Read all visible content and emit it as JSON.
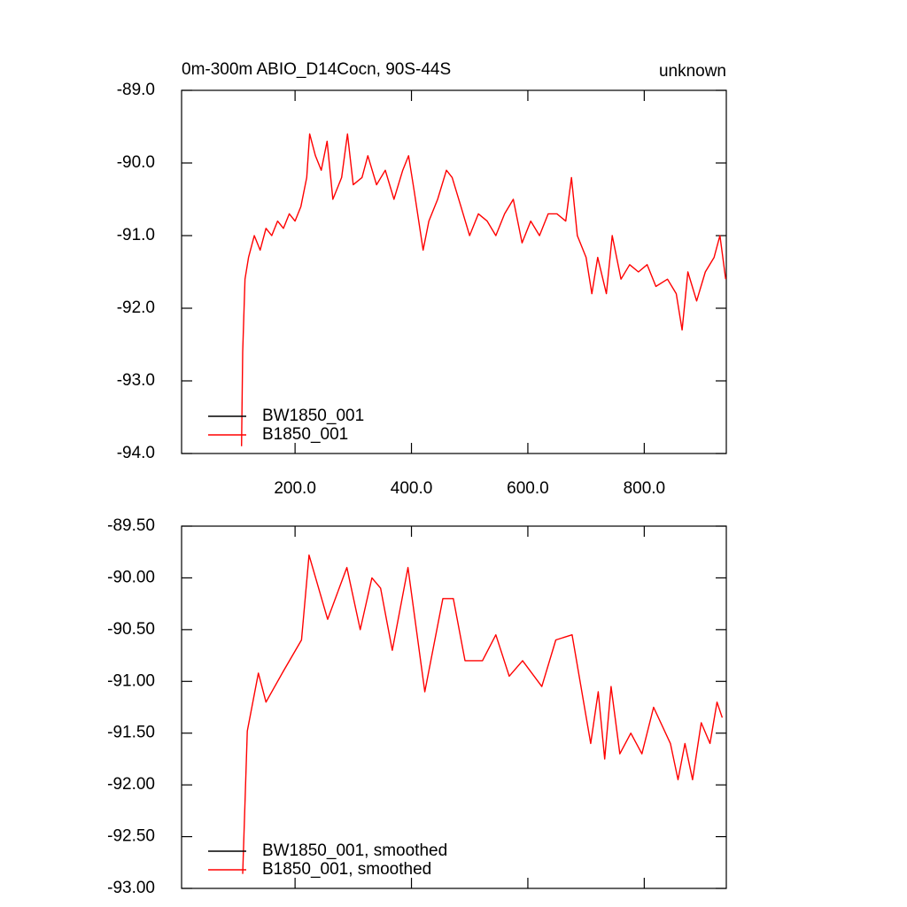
{
  "chart_data": [
    {
      "type": "line",
      "title": "0m-300m ABIO_D14Cocn, 90S-44S",
      "subtitle": "unknown",
      "x": [
        108,
        110,
        114,
        120,
        130,
        140,
        150,
        160,
        170,
        180,
        190,
        200,
        210,
        220,
        225,
        235,
        245,
        255,
        265,
        280,
        290,
        300,
        315,
        325,
        340,
        355,
        370,
        385,
        395,
        405,
        420,
        430,
        445,
        460,
        470,
        485,
        500,
        515,
        530,
        545,
        560,
        575,
        590,
        605,
        620,
        635,
        650,
        665,
        675,
        685,
        700,
        710,
        720,
        735,
        745,
        760,
        775,
        790,
        805,
        820,
        840,
        855,
        865,
        875,
        890,
        905,
        920,
        930,
        940
      ],
      "series": [
        {
          "name": "BW1850_001",
          "color": "#000000",
          "values": [
            null,
            null,
            null,
            null,
            null,
            null,
            null,
            null,
            null,
            null,
            null,
            null,
            null,
            null,
            null,
            null,
            null,
            null,
            null,
            null,
            null,
            null,
            null,
            null,
            null,
            null,
            null,
            null,
            null,
            null,
            null,
            null,
            null,
            null,
            null,
            null,
            null,
            null,
            null,
            null,
            null,
            null,
            null,
            null,
            null,
            null,
            null,
            null,
            null,
            null,
            null,
            null,
            null,
            null,
            null,
            null,
            null,
            null,
            null,
            null,
            null,
            null,
            null,
            null,
            null,
            null,
            null,
            null,
            null
          ]
        },
        {
          "name": "B1850_001",
          "color": "#ff0000",
          "values": [
            -93.9,
            -92.6,
            -91.6,
            -91.3,
            -91.0,
            -91.2,
            -90.9,
            -91.0,
            -90.8,
            -90.9,
            -90.7,
            -90.8,
            -90.6,
            -90.2,
            -89.6,
            -89.9,
            -90.1,
            -89.7,
            -90.5,
            -90.2,
            -89.6,
            -90.3,
            -90.2,
            -89.9,
            -90.3,
            -90.1,
            -90.5,
            -90.1,
            -89.9,
            -90.4,
            -91.2,
            -90.8,
            -90.5,
            -90.1,
            -90.2,
            -90.6,
            -91.0,
            -90.7,
            -90.8,
            -91.0,
            -90.7,
            -90.5,
            -91.1,
            -90.8,
            -91.0,
            -90.7,
            -90.7,
            -90.8,
            -90.2,
            -91.0,
            -91.3,
            -91.8,
            -91.3,
            -91.8,
            -91.0,
            -91.6,
            -91.4,
            -91.5,
            -91.4,
            -91.7,
            -91.6,
            -91.8,
            -92.3,
            -91.5,
            -91.9,
            -91.5,
            -91.3,
            -91.0,
            -91.6
          ]
        }
      ],
      "xlim": [
        5,
        941
      ],
      "xticks": [
        {
          "value": 200,
          "label": "200.0"
        },
        {
          "value": 400,
          "label": "400.0"
        },
        {
          "value": 600,
          "label": "600.0"
        },
        {
          "value": 800,
          "label": "800.0"
        }
      ],
      "ylim": [
        -94,
        -89
      ],
      "yticks": [
        {
          "value": -94,
          "label": "-94.0"
        },
        {
          "value": -93,
          "label": "-93.0"
        },
        {
          "value": -92,
          "label": "-92.0"
        },
        {
          "value": -91,
          "label": "-91.0"
        },
        {
          "value": -90,
          "label": "-90.0"
        },
        {
          "value": -89,
          "label": "-89.0"
        }
      ],
      "legend": "lower left"
    },
    {
      "type": "line",
      "x": [
        110,
        118,
        137,
        150,
        180,
        211,
        224,
        256,
        289,
        312,
        332,
        347,
        367,
        394,
        423,
        454,
        472,
        492,
        522,
        545,
        568,
        591,
        624,
        648,
        676,
        708,
        721,
        732,
        743,
        758,
        777,
        796,
        816,
        845,
        858,
        870,
        883,
        898,
        913,
        925,
        934
      ],
      "series": [
        {
          "name": "BW1850_001, smoothed",
          "color": "#000000",
          "values": [
            null,
            null,
            null,
            null,
            null,
            null,
            null,
            null,
            null,
            null,
            null,
            null,
            null,
            null,
            null,
            null,
            null,
            null,
            null,
            null,
            null,
            null,
            null,
            null,
            null,
            null,
            null,
            null,
            null,
            null,
            null,
            null,
            null,
            null,
            null,
            null,
            null,
            null,
            null,
            null,
            null
          ]
        },
        {
          "name": "B1850_001, smoothed",
          "color": "#ff0000",
          "values": [
            -92.86,
            -91.48,
            -90.92,
            -91.2,
            -90.9,
            -90.6,
            -89.78,
            -90.4,
            -89.9,
            -90.5,
            -90.0,
            -90.1,
            -90.7,
            -89.9,
            -91.1,
            -90.2,
            -90.2,
            -90.8,
            -90.8,
            -90.55,
            -90.95,
            -90.8,
            -91.05,
            -90.6,
            -90.55,
            -91.6,
            -91.1,
            -91.75,
            -91.05,
            -91.7,
            -91.5,
            -91.7,
            -91.25,
            -91.6,
            -91.95,
            -91.6,
            -91.95,
            -91.4,
            -91.6,
            -91.2,
            -91.35
          ]
        }
      ],
      "xlim": [
        5,
        941
      ],
      "xticks": [
        200,
        400,
        600,
        800
      ],
      "show_xtick_labels": false,
      "ylim": [
        -93,
        -89.5
      ],
      "yticks": [
        {
          "value": -93,
          "label": "-93.00"
        },
        {
          "value": -92.5,
          "label": "-92.50"
        },
        {
          "value": -92,
          "label": "-92.00"
        },
        {
          "value": -91.5,
          "label": "-91.50"
        },
        {
          "value": -91,
          "label": "-91.00"
        },
        {
          "value": -90.5,
          "label": "-90.50"
        },
        {
          "value": -90,
          "label": "-90.00"
        },
        {
          "value": -89.5,
          "label": "-89.50"
        }
      ],
      "legend": "lower left"
    }
  ]
}
